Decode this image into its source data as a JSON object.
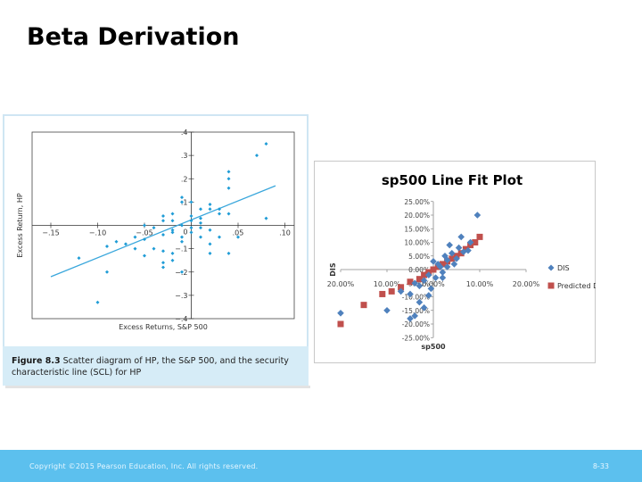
{
  "slide": {
    "title": "Beta Derivation",
    "footer_copyright": "Copyright ©2015 Pearson Education, Inc. All rights reserved.",
    "page_number": "8-33",
    "footer_color": "#5cc0ee"
  },
  "figure": {
    "label": "Figure 8.3",
    "caption": "Scatter diagram of HP, the S&P 500, and the security characteristic line (SCL) for HP"
  },
  "chart_data": [
    {
      "id": "hp-scl",
      "type": "scatter",
      "title": "",
      "xlabel": "Excess Returns, S&P 500",
      "ylabel": "Excess Return, HP",
      "xlim": [
        -0.17,
        0.11
      ],
      "ylim": [
        -0.4,
        0.4
      ],
      "x_ticks": [
        -0.15,
        -0.1,
        -0.05,
        0.05,
        0.1
      ],
      "x_tick_labels": [
        "−.15",
        "−.10",
        "−.05",
        ".05",
        ".10"
      ],
      "y_ticks": [
        -0.4,
        -0.3,
        -0.2,
        -0.1,
        0.1,
        0.2,
        0.3,
        0.4
      ],
      "y_tick_labels": [
        "−.4",
        "−.3",
        "−.2",
        "−.1",
        ".1",
        ".2",
        ".3",
        ".4"
      ],
      "origin_label": "0",
      "marker_color": "#1f9cd6",
      "line_color": "#3aa7dc",
      "regression_line": {
        "x": [
          -0.15,
          0.09
        ],
        "y": [
          -0.22,
          0.17
        ]
      },
      "series": [
        {
          "name": "HP",
          "points": [
            [
              0.08,
              0.35
            ],
            [
              0.07,
              0.3
            ],
            [
              0.04,
              0.23
            ],
            [
              0.04,
              0.2
            ],
            [
              0.04,
              0.16
            ],
            [
              0.08,
              0.03
            ],
            [
              -0.01,
              0.12
            ],
            [
              -0.01,
              0.1
            ],
            [
              0.0,
              0.1
            ],
            [
              0.02,
              0.07
            ],
            [
              0.03,
              0.07
            ],
            [
              0.01,
              0.07
            ],
            [
              0.03,
              0.05
            ],
            [
              0.04,
              0.05
            ],
            [
              0.0,
              0.04
            ],
            [
              0.01,
              0.03
            ],
            [
              -0.02,
              0.05
            ],
            [
              -0.03,
              0.04
            ],
            [
              -0.02,
              0.02
            ],
            [
              -0.01,
              0.0
            ],
            [
              0.0,
              0.02
            ],
            [
              0.0,
              -0.01
            ],
            [
              0.01,
              -0.01
            ],
            [
              0.02,
              -0.02
            ],
            [
              0.01,
              -0.05
            ],
            [
              0.03,
              -0.05
            ],
            [
              0.02,
              -0.08
            ],
            [
              0.05,
              -0.05
            ],
            [
              0.04,
              -0.12
            ],
            [
              -0.01,
              -0.05
            ],
            [
              -0.02,
              -0.02
            ],
            [
              -0.03,
              -0.04
            ],
            [
              -0.05,
              -0.06
            ],
            [
              -0.06,
              -0.05
            ],
            [
              -0.04,
              -0.1
            ],
            [
              -0.05,
              -0.13
            ],
            [
              -0.07,
              -0.08
            ],
            [
              -0.09,
              -0.09
            ],
            [
              -0.03,
              -0.11
            ],
            [
              -0.02,
              -0.12
            ],
            [
              -0.02,
              -0.15
            ],
            [
              -0.03,
              -0.16
            ],
            [
              -0.03,
              -0.18
            ],
            [
              -0.01,
              -0.2
            ],
            [
              -0.01,
              -0.07
            ],
            [
              -0.02,
              -0.03
            ],
            [
              -0.04,
              -0.01
            ],
            [
              -0.05,
              0.0
            ],
            [
              -0.08,
              -0.07
            ],
            [
              -0.09,
              -0.2
            ],
            [
              -0.12,
              -0.14
            ],
            [
              -0.1,
              -0.33
            ],
            [
              -0.06,
              -0.1
            ],
            [
              0.0,
              -0.03
            ],
            [
              0.02,
              0.09
            ],
            [
              -0.03,
              0.02
            ],
            [
              0.01,
              0.01
            ],
            [
              0.02,
              -0.12
            ]
          ]
        }
      ]
    },
    {
      "id": "sp500-line-fit",
      "type": "scatter",
      "title": "sp500 Line Fit  Plot",
      "xlabel": "sp500",
      "ylabel": "DIS",
      "xlim": [
        -20,
        20
      ],
      "ylim": [
        -25,
        25
      ],
      "x_tick_labels": [
        "20.00%",
        "10.00%",
        "0.00%",
        "10.00%",
        "20.00%"
      ],
      "y_tick_labels": [
        "25.00%",
        "20.00%",
        "15.00%",
        "10.00%",
        "5.00%",
        "0.00%",
        "-5.00%",
        "-10.00%",
        "-15.00%",
        "-20.00%",
        "-25.00%"
      ],
      "series": [
        {
          "name": "DIS",
          "color": "#4f81bd",
          "marker": "diamond",
          "points": [
            [
              9.5,
              20.0
            ],
            [
              6.0,
              12.0
            ],
            [
              8.0,
              10.0
            ],
            [
              3.5,
              9.0
            ],
            [
              5.5,
              8.0
            ],
            [
              4.0,
              6.0
            ],
            [
              2.5,
              5.0
            ],
            [
              3.0,
              3.5
            ],
            [
              4.5,
              2.0
            ],
            [
              1.5,
              1.0
            ],
            [
              2.0,
              -1.0
            ],
            [
              0.5,
              -3.0
            ],
            [
              -1.0,
              -2.0
            ],
            [
              -2.0,
              -4.0
            ],
            [
              -3.0,
              -6.0
            ],
            [
              -4.0,
              -5.0
            ],
            [
              -0.5,
              -7.0
            ],
            [
              -5.0,
              -9.0
            ],
            [
              -7.0,
              -8.0
            ],
            [
              -1.0,
              -9.5
            ],
            [
              -3.0,
              -12.0
            ],
            [
              -2.0,
              -14.0
            ],
            [
              -10.0,
              -15.0
            ],
            [
              -4.0,
              -17.0
            ],
            [
              -20.0,
              -16.0
            ],
            [
              -5.0,
              -18.0
            ],
            [
              3.0,
              1.0
            ],
            [
              1.0,
              2.0
            ],
            [
              0.0,
              3.0
            ],
            [
              6.5,
              6.5
            ],
            [
              7.5,
              7.0
            ],
            [
              5.0,
              4.0
            ],
            [
              2.0,
              -3.0
            ]
          ]
        },
        {
          "name": "Predicted DIS",
          "color": "#c0504d",
          "marker": "square",
          "points": [
            [
              -20.0,
              -20.0
            ],
            [
              -15.0,
              -13.0
            ],
            [
              -11.0,
              -9.0
            ],
            [
              -9.0,
              -8.0
            ],
            [
              -7.0,
              -6.5
            ],
            [
              -5.0,
              -4.5
            ],
            [
              -3.0,
              -3.5
            ],
            [
              -2.0,
              -2.0
            ],
            [
              -1.0,
              -1.0
            ],
            [
              0.0,
              0.0
            ],
            [
              1.0,
              1.0
            ],
            [
              2.0,
              2.0
            ],
            [
              3.0,
              3.0
            ],
            [
              4.0,
              4.0
            ],
            [
              5.0,
              5.0
            ],
            [
              6.0,
              6.0
            ],
            [
              7.0,
              7.5
            ],
            [
              8.0,
              9.0
            ],
            [
              9.0,
              10.0
            ],
            [
              10.0,
              12.0
            ]
          ]
        }
      ]
    }
  ]
}
